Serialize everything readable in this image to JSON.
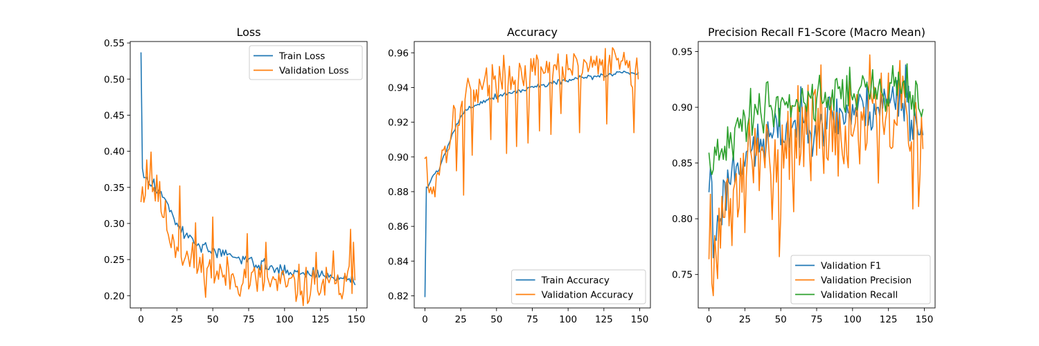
{
  "chart_data": [
    {
      "type": "line",
      "title": "Loss",
      "xlabel": "",
      "ylabel": "",
      "xlim": [
        -7.5,
        157.5
      ],
      "ylim": [
        0.183,
        0.552
      ],
      "xticks": [
        0,
        25,
        50,
        75,
        100,
        125,
        150
      ],
      "yticks": [
        0.2,
        0.25,
        0.3,
        0.35,
        0.4,
        0.45,
        0.5,
        0.55
      ],
      "ytick_decimals": 2,
      "grid": false,
      "legend_position": "upper right",
      "x_range": [
        0,
        149
      ],
      "series": [
        {
          "name": "Train Loss",
          "color": "#1f77b4",
          "keypoints": [
            [
              0,
              0.535
            ],
            [
              1,
              0.372
            ],
            [
              3,
              0.362
            ],
            [
              8,
              0.353
            ],
            [
              14,
              0.343
            ],
            [
              20,
              0.322
            ],
            [
              25,
              0.298
            ],
            [
              30,
              0.286
            ],
            [
              35,
              0.278
            ],
            [
              40,
              0.27
            ],
            [
              50,
              0.262
            ],
            [
              60,
              0.255
            ],
            [
              75,
              0.249
            ],
            [
              90,
              0.238
            ],
            [
              100,
              0.235
            ],
            [
              110,
              0.232
            ],
            [
              125,
              0.229
            ],
            [
              140,
              0.224
            ],
            [
              149,
              0.222
            ]
          ],
          "noise": 0.004,
          "seed": 3
        },
        {
          "name": "Validation Loss",
          "color": "#ff7f0e",
          "keypoints": [
            [
              0,
              0.348
            ],
            [
              3,
              0.345
            ],
            [
              6,
              0.36
            ],
            [
              10,
              0.345
            ],
            [
              15,
              0.32
            ],
            [
              20,
              0.285
            ],
            [
              25,
              0.272
            ],
            [
              30,
              0.255
            ],
            [
              40,
              0.24
            ],
            [
              50,
              0.232
            ],
            [
              60,
              0.226
            ],
            [
              75,
              0.222
            ],
            [
              90,
              0.218
            ],
            [
              100,
              0.214
            ],
            [
              115,
              0.212
            ],
            [
              130,
              0.213
            ],
            [
              140,
              0.21
            ],
            [
              149,
              0.222
            ]
          ],
          "noise": 0.014,
          "seed": 11,
          "overrides": [
            [
              4,
              0.388
            ],
            [
              7,
              0.399
            ],
            [
              11,
              0.367
            ],
            [
              27,
              0.352
            ],
            [
              38,
              0.301
            ],
            [
              50,
              0.309
            ],
            [
              74,
              0.286
            ],
            [
              87,
              0.274
            ],
            [
              122,
              0.26
            ],
            [
              134,
              0.262
            ],
            [
              146,
              0.292
            ],
            [
              147,
              0.203
            ],
            [
              148,
              0.274
            ],
            [
              149,
              0.222
            ]
          ]
        }
      ]
    },
    {
      "type": "line",
      "title": "Accuracy",
      "xlabel": "",
      "ylabel": "",
      "xlim": [
        -7.5,
        157.5
      ],
      "ylim": [
        0.813,
        0.9665
      ],
      "xticks": [
        0,
        25,
        50,
        75,
        100,
        125,
        150
      ],
      "yticks": [
        0.82,
        0.84,
        0.86,
        0.88,
        0.9,
        0.92,
        0.94,
        0.96
      ],
      "ytick_decimals": 2,
      "grid": false,
      "legend_position": "lower right",
      "x_range": [
        0,
        149
      ],
      "series": [
        {
          "name": "Train Accuracy",
          "color": "#1f77b4",
          "keypoints": [
            [
              0,
              0.82
            ],
            [
              1,
              0.882
            ],
            [
              5,
              0.888
            ],
            [
              10,
              0.893
            ],
            [
              15,
              0.905
            ],
            [
              20,
              0.915
            ],
            [
              25,
              0.923
            ],
            [
              30,
              0.928
            ],
            [
              40,
              0.932
            ],
            [
              50,
              0.935
            ],
            [
              60,
              0.937
            ],
            [
              75,
              0.94
            ],
            [
              90,
              0.943
            ],
            [
              100,
              0.944
            ],
            [
              115,
              0.946
            ],
            [
              125,
              0.947
            ],
            [
              140,
              0.949
            ],
            [
              149,
              0.948
            ]
          ],
          "noise": 0.0008,
          "seed": 5
        },
        {
          "name": "Validation Accuracy",
          "color": "#ff7f0e",
          "keypoints": [
            [
              0,
              0.899
            ],
            [
              2,
              0.885
            ],
            [
              5,
              0.882
            ],
            [
              10,
              0.895
            ],
            [
              15,
              0.906
            ],
            [
              20,
              0.922
            ],
            [
              25,
              0.928
            ],
            [
              30,
              0.938
            ],
            [
              40,
              0.942
            ],
            [
              50,
              0.945
            ],
            [
              60,
              0.947
            ],
            [
              75,
              0.948
            ],
            [
              90,
              0.95
            ],
            [
              100,
              0.951
            ],
            [
              115,
              0.952
            ],
            [
              130,
              0.954
            ],
            [
              140,
              0.955
            ],
            [
              149,
              0.945
            ]
          ],
          "noise": 0.005,
          "seed": 17,
          "overrides": [
            [
              1,
              0.9
            ],
            [
              7,
              0.877
            ],
            [
              12,
              0.904
            ],
            [
              22,
              0.892
            ],
            [
              27,
              0.878
            ],
            [
              33,
              0.901
            ],
            [
              46,
              0.91
            ],
            [
              57,
              0.902
            ],
            [
              64,
              0.906
            ],
            [
              72,
              0.908
            ],
            [
              80,
              0.915
            ],
            [
              88,
              0.913
            ],
            [
              95,
              0.925
            ],
            [
              99,
              0.959
            ],
            [
              108,
              0.914
            ],
            [
              116,
              0.958
            ],
            [
              127,
              0.919
            ],
            [
              133,
              0.959
            ],
            [
              145,
              0.94
            ],
            [
              146,
              0.914
            ],
            [
              147,
              0.95
            ],
            [
              148,
              0.957
            ],
            [
              149,
              0.945
            ]
          ]
        }
      ]
    },
    {
      "type": "line",
      "title": "Precision Recall F1-Score (Macro Mean)",
      "xlabel": "",
      "ylabel": "",
      "xlim": [
        -7.5,
        157.5
      ],
      "ylim": [
        0.72,
        0.959
      ],
      "xticks": [
        0,
        25,
        50,
        75,
        100,
        125,
        150
      ],
      "yticks": [
        0.75,
        0.8,
        0.85,
        0.9,
        0.95
      ],
      "ytick_decimals": 2,
      "grid": false,
      "legend_position": "lower right",
      "x_range": [
        0,
        149
      ],
      "series": [
        {
          "name": "Validation F1",
          "color": "#1f77b4",
          "keypoints": [
            [
              0,
              0.832
            ],
            [
              1,
              0.833
            ],
            [
              3,
              0.765
            ],
            [
              6,
              0.8
            ],
            [
              10,
              0.818
            ],
            [
              15,
              0.842
            ],
            [
              20,
              0.852
            ],
            [
              30,
              0.862
            ],
            [
              40,
              0.87
            ],
            [
              50,
              0.878
            ],
            [
              60,
              0.884
            ],
            [
              75,
              0.888
            ],
            [
              90,
              0.893
            ],
            [
              100,
              0.897
            ],
            [
              115,
              0.9
            ],
            [
              125,
              0.905
            ],
            [
              135,
              0.908
            ],
            [
              149,
              0.876
            ]
          ],
          "noise": 0.012,
          "seed": 23,
          "overrides": [
            [
              2,
              0.833
            ],
            [
              3,
              0.765
            ],
            [
              4,
              0.783
            ],
            [
              131,
              0.924
            ],
            [
              137,
              0.938
            ]
          ]
        },
        {
          "name": "Validation Precision",
          "color": "#ff7f0e",
          "keypoints": [
            [
              0,
              0.82
            ],
            [
              2,
              0.742
            ],
            [
              3,
              0.731
            ],
            [
              6,
              0.77
            ],
            [
              10,
              0.79
            ],
            [
              15,
              0.812
            ],
            [
              20,
              0.828
            ],
            [
              30,
              0.845
            ],
            [
              40,
              0.855
            ],
            [
              50,
              0.863
            ],
            [
              60,
              0.87
            ],
            [
              75,
              0.874
            ],
            [
              90,
              0.879
            ],
            [
              100,
              0.882
            ],
            [
              115,
              0.885
            ],
            [
              125,
              0.888
            ],
            [
              135,
              0.89
            ],
            [
              149,
              0.863
            ]
          ],
          "noise": 0.025,
          "seed": 31,
          "overrides": [
            [
              1,
              0.822
            ],
            [
              2,
              0.742
            ],
            [
              3,
              0.731
            ],
            [
              4,
              0.785
            ],
            [
              13,
              0.836
            ],
            [
              49,
              0.766
            ],
            [
              78,
              0.938
            ],
            [
              112,
              0.947
            ],
            [
              118,
              0.832
            ],
            [
              133,
              0.942
            ],
            [
              146,
              0.811
            ],
            [
              148,
              0.892
            ],
            [
              149,
              0.863
            ]
          ]
        },
        {
          "name": "Validation Recall",
          "color": "#2ca02c",
          "keypoints": [
            [
              0,
              0.846
            ],
            [
              2,
              0.858
            ],
            [
              5,
              0.848
            ],
            [
              10,
              0.86
            ],
            [
              15,
              0.867
            ],
            [
              20,
              0.878
            ],
            [
              25,
              0.888
            ],
            [
              30,
              0.893
            ],
            [
              40,
              0.9
            ],
            [
              50,
              0.903
            ],
            [
              60,
              0.906
            ],
            [
              75,
              0.909
            ],
            [
              90,
              0.912
            ],
            [
              100,
              0.913
            ],
            [
              115,
              0.915
            ],
            [
              125,
              0.917
            ],
            [
              135,
              0.919
            ],
            [
              149,
              0.898
            ]
          ],
          "noise": 0.01,
          "seed": 41,
          "overrides": [
            [
              3,
              0.844
            ],
            [
              29,
              0.917
            ],
            [
              41,
              0.923
            ],
            [
              98,
              0.936
            ],
            [
              130,
              0.927
            ],
            [
              138,
              0.939
            ],
            [
              145,
              0.92
            ],
            [
              149,
              0.898
            ]
          ]
        }
      ]
    }
  ]
}
